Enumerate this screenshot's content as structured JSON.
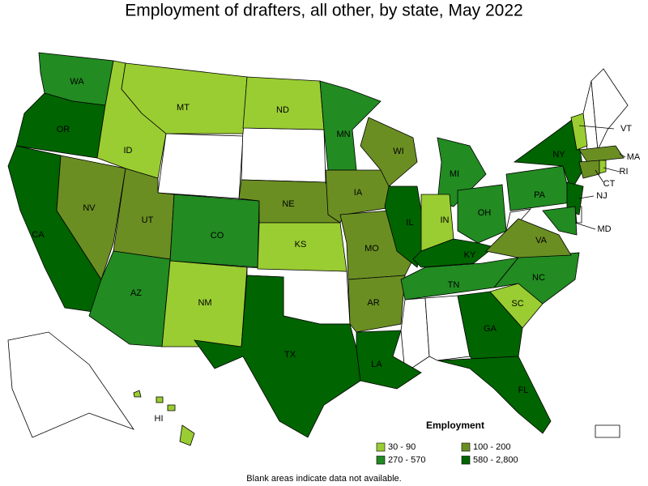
{
  "title": "Employment of drafters, all other, by state, May 2022",
  "legend": {
    "title": "Employment",
    "items": [
      {
        "label": "30 - 90",
        "color": "#9acd32"
      },
      {
        "label": "100 - 200",
        "color": "#6b8e23"
      },
      {
        "label": "270 - 570",
        "color": "#228b22"
      },
      {
        "label": "580 - 2,800",
        "color": "#006400"
      }
    ]
  },
  "blank_color": "#ffffff",
  "states": [
    {
      "label": "WA",
      "color": "#228b22"
    },
    {
      "label": "OR",
      "color": "#006400"
    },
    {
      "label": "CA",
      "color": "#006400"
    },
    {
      "label": "NV",
      "color": "#6b8e23"
    },
    {
      "label": "ID",
      "color": "#9acd32"
    },
    {
      "label": "MT",
      "color": "#9acd32"
    },
    {
      "label": "UT",
      "color": "#6b8e23"
    },
    {
      "label": "AZ",
      "color": "#228b22"
    },
    {
      "label": "CO",
      "color": "#228b22"
    },
    {
      "label": "NM",
      "color": "#9acd32"
    },
    {
      "label": "ND",
      "color": "#9acd32"
    },
    {
      "label": "NE",
      "color": "#6b8e23"
    },
    {
      "label": "KS",
      "color": "#9acd32"
    },
    {
      "label": "TX",
      "color": "#006400"
    },
    {
      "label": "MN",
      "color": "#228b22"
    },
    {
      "label": "IA",
      "color": "#6b8e23"
    },
    {
      "label": "MO",
      "color": "#6b8e23"
    },
    {
      "label": "AR",
      "color": "#6b8e23"
    },
    {
      "label": "LA",
      "color": "#006400"
    },
    {
      "label": "WI",
      "color": "#6b8e23"
    },
    {
      "label": "IL",
      "color": "#006400"
    },
    {
      "label": "MI",
      "color": "#228b22"
    },
    {
      "label": "IN",
      "color": "#9acd32"
    },
    {
      "label": "OH",
      "color": "#228b22"
    },
    {
      "label": "KY",
      "color": "#006400"
    },
    {
      "label": "TN",
      "color": "#228b22"
    },
    {
      "label": "GA",
      "color": "#006400"
    },
    {
      "label": "FL",
      "color": "#006400"
    },
    {
      "label": "SC",
      "color": "#9acd32"
    },
    {
      "label": "NC",
      "color": "#228b22"
    },
    {
      "label": "VA",
      "color": "#6b8e23"
    },
    {
      "label": "PA",
      "color": "#228b22"
    },
    {
      "label": "NY",
      "color": "#006400"
    },
    {
      "label": "VT",
      "color": "#9acd32"
    },
    {
      "label": "MA",
      "color": "#6b8e23"
    },
    {
      "label": "CT",
      "color": "#6b8e23"
    },
    {
      "label": "RI",
      "color": "#9acd32"
    },
    {
      "label": "NJ",
      "color": "#006400"
    },
    {
      "label": "MD",
      "color": "#228b22"
    },
    {
      "label": "HI",
      "color": "#9acd32"
    }
  ],
  "note": "Blank areas indicate data not available."
}
